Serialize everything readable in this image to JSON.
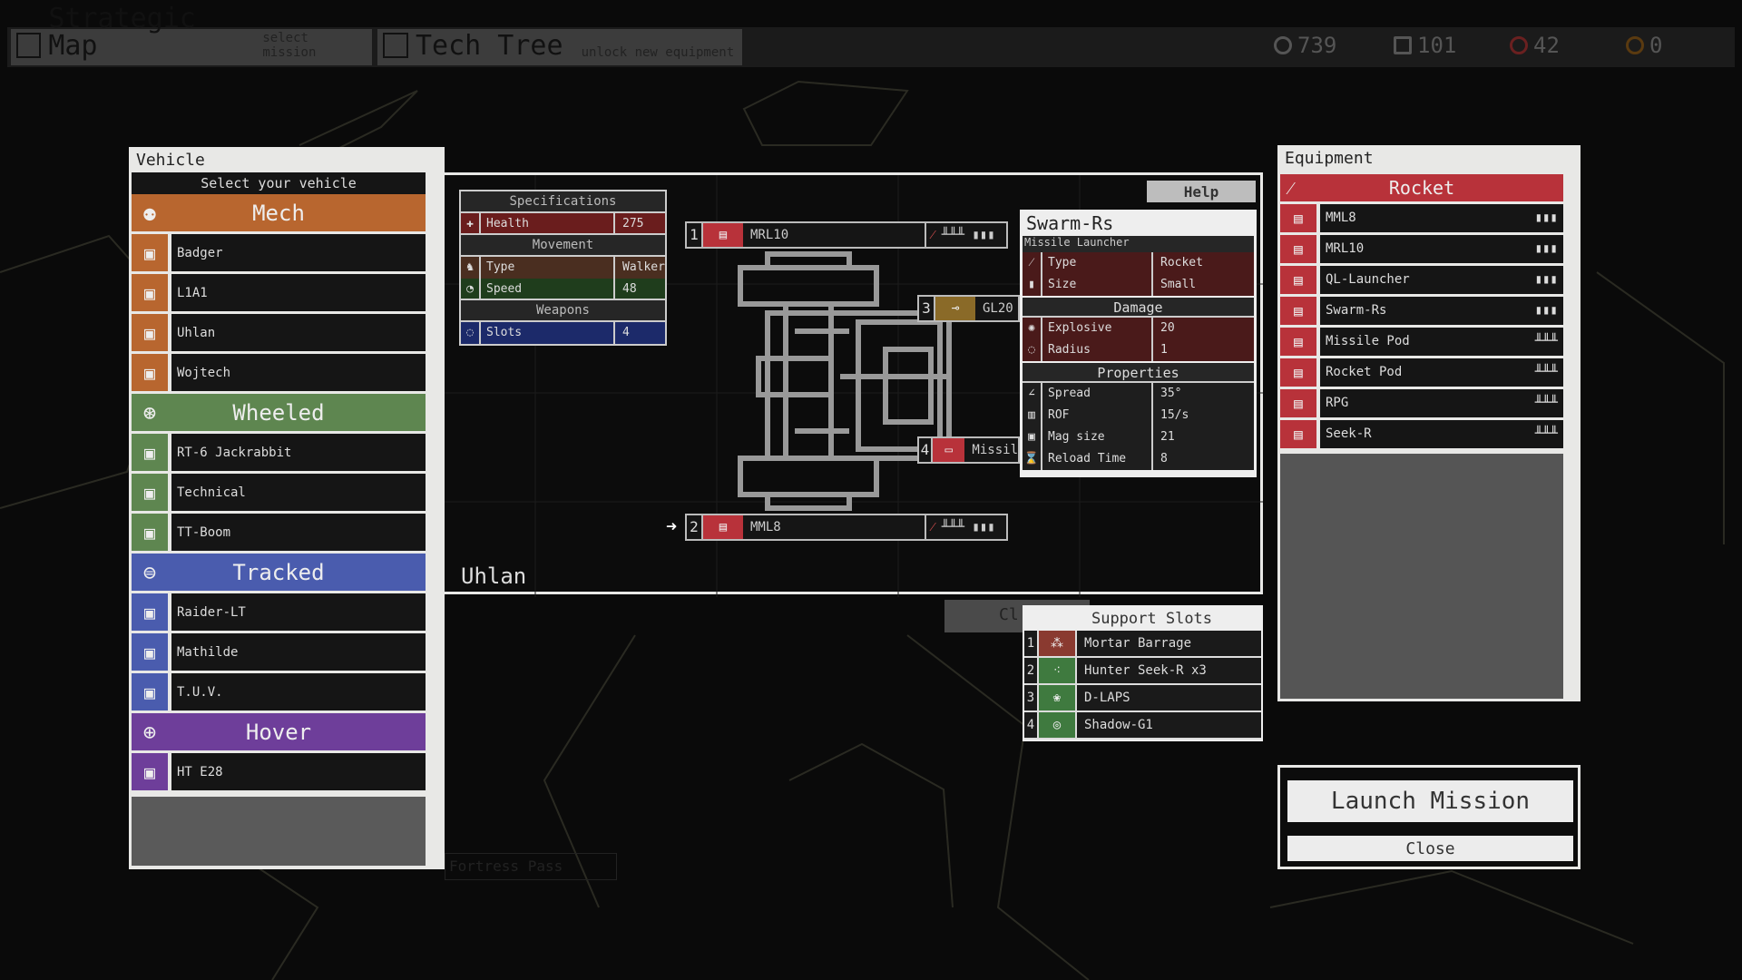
{
  "topbar": {
    "tabs": [
      {
        "label": "Strategic Map",
        "sub": "select mission",
        "icon": "map-icon"
      },
      {
        "label": "Tech Tree",
        "sub": "unlock new equipment",
        "icon": "tech-tree-icon"
      }
    ],
    "resources": [
      {
        "value": "739",
        "icon": "gear-icon"
      },
      {
        "value": "101",
        "icon": "document-icon"
      },
      {
        "value": "42",
        "icon": "blood-icon"
      },
      {
        "value": "0",
        "icon": "virus-icon"
      }
    ]
  },
  "map": {
    "label": "Fortress Pass"
  },
  "vehicle": {
    "title": "Vehicle",
    "subtitle": "Select your vehicle",
    "categories": [
      {
        "name": "Mech",
        "color": "#b8662f",
        "items": [
          "Badger",
          "L1A1",
          "Uhlan",
          "Wojtech"
        ]
      },
      {
        "name": "Wheeled",
        "color": "#5e8650",
        "items": [
          "RT-6 Jackrabbit",
          "Technical",
          "TT-Boom"
        ]
      },
      {
        "name": "Tracked",
        "color": "#4a5cae",
        "items": [
          "Raider-LT",
          "Mathilde",
          "T.U.V."
        ]
      },
      {
        "name": "Hover",
        "color": "#6e3e9a",
        "items": [
          "HT E28"
        ]
      }
    ]
  },
  "specs": {
    "title": "Specifications",
    "health_label": "Health",
    "health": "275",
    "movement": "Movement",
    "type_label": "Type",
    "type": "Walker",
    "speed_label": "Speed",
    "speed": "48",
    "weapons": "Weapons",
    "slots_label": "Slots",
    "slots": "4"
  },
  "help_label": "Help",
  "vehicle_name": "Uhlan",
  "weapon_slots": [
    {
      "n": "1",
      "name": "MRL10"
    },
    {
      "n": "2",
      "name": "MML8"
    },
    {
      "n": "3",
      "name": "GL20"
    },
    {
      "n": "4",
      "name": "Missil"
    }
  ],
  "weapon_info": {
    "name": "Swarm-Rs",
    "category": "Missile Launcher",
    "type_label": "Type",
    "type": "Rocket",
    "size_label": "Size",
    "size": "Small",
    "damage": "Damage",
    "explosive_label": "Explosive",
    "explosive": "20",
    "radius_label": "Radius",
    "radius": "1",
    "properties": "Properties",
    "spread_label": "Spread",
    "spread": "35°",
    "rof_label": "ROF",
    "rof": "15/s",
    "mag_label": "Mag size",
    "mag": "21",
    "reload_label": "Reload Time",
    "reload": "8"
  },
  "support": {
    "title": "Support Slots",
    "hidden_label": "Cl",
    "items": [
      {
        "n": "1",
        "name": "Mortar Barrage",
        "color": "#8a3a30"
      },
      {
        "n": "2",
        "name": "Hunter Seek-R x3",
        "color": "#3f7a3f"
      },
      {
        "n": "3",
        "name": "D-LAPS",
        "color": "#3f7a3f"
      },
      {
        "n": "4",
        "name": "Shadow-G1",
        "color": "#3f7a3f"
      }
    ]
  },
  "equipment": {
    "title": "Equipment",
    "category": "Rocket",
    "items": [
      {
        "name": "MML8",
        "size": "▮▮▮"
      },
      {
        "name": "MRL10",
        "size": "▮▮▮"
      },
      {
        "name": "QL-Launcher",
        "size": "▮▮▮"
      },
      {
        "name": "Swarm-Rs",
        "size": "▮▮▮"
      },
      {
        "name": "Missile Pod",
        "size": "╨╨╨"
      },
      {
        "name": "Rocket Pod",
        "size": "╨╨╨"
      },
      {
        "name": "RPG",
        "size": "╨╨╨"
      },
      {
        "name": "Seek-R",
        "size": "╨╨╨"
      }
    ]
  },
  "launch_label": "Launch Mission",
  "close_label": "Close"
}
